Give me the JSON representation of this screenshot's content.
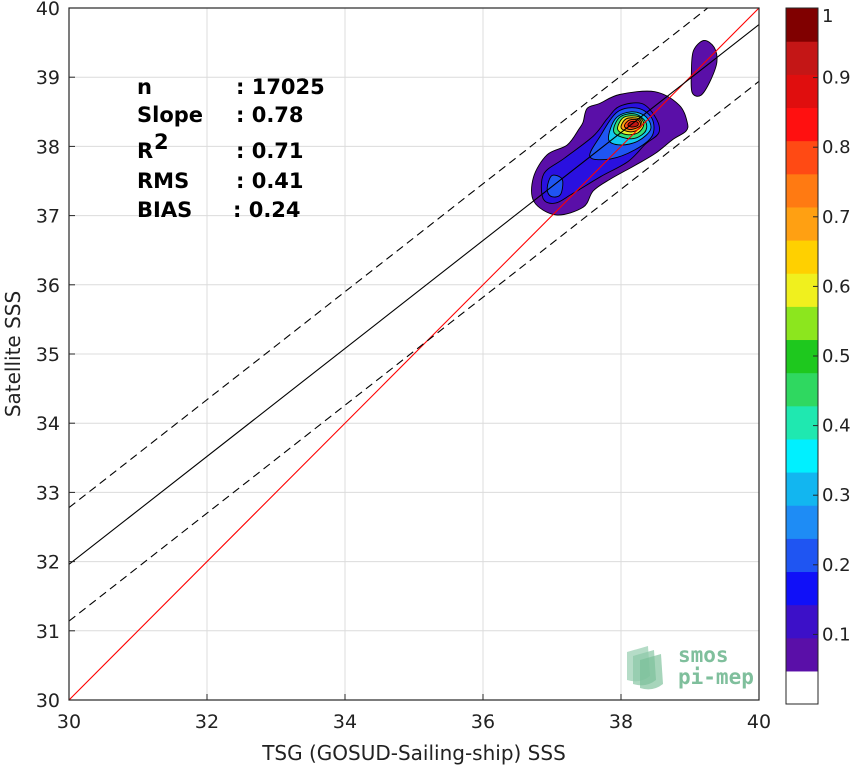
{
  "chart_data": {
    "type": "scatter",
    "subtype": "2d-density-contour",
    "xlabel": "TSG (GOSUD-Sailing-ship) SSS",
    "ylabel": "Satellite SSS",
    "xlim": [
      30,
      40
    ],
    "ylim": [
      30,
      40
    ],
    "x_ticks": [
      "30",
      "32",
      "34",
      "36",
      "38",
      "40"
    ],
    "y_ticks": [
      "30",
      "31",
      "32",
      "33",
      "34",
      "35",
      "36",
      "37",
      "38",
      "39",
      "40"
    ],
    "grid": true,
    "stats": [
      {
        "label": "n",
        "value": ": 17025"
      },
      {
        "label": "Slope",
        "value": ": 0.78"
      },
      {
        "label": "R",
        "sup": "2",
        "value": ": 0.71"
      },
      {
        "label": "RMS",
        "value": ": 0.41"
      },
      {
        "label": "BIAS",
        "value": ": 0.24"
      }
    ],
    "reference_lines": [
      {
        "name": "1:1",
        "color": "#ff0000",
        "style": "solid",
        "points": [
          [
            30,
            30
          ],
          [
            40,
            40
          ]
        ]
      },
      {
        "name": "regression",
        "color": "#000000",
        "style": "solid",
        "points": [
          [
            30,
            31.96
          ],
          [
            40,
            39.76
          ]
        ]
      },
      {
        "name": "upper",
        "color": "#000000",
        "style": "dashed",
        "points": [
          [
            30,
            32.78
          ],
          [
            40,
            40.58
          ]
        ]
      },
      {
        "name": "lower",
        "color": "#000000",
        "style": "dashed",
        "points": [
          [
            30,
            31.14
          ],
          [
            40,
            38.94
          ]
        ]
      }
    ],
    "density_contours": [
      {
        "level": 0.05,
        "color": "#5a0fa8",
        "points": [
          [
            36.74,
            37.2
          ],
          [
            36.73,
            37.55
          ],
          [
            36.93,
            37.88
          ],
          [
            37.22,
            38.02
          ],
          [
            37.39,
            38.25
          ],
          [
            37.45,
            38.35
          ],
          [
            37.51,
            38.55
          ],
          [
            37.69,
            38.62
          ],
          [
            37.98,
            38.75
          ],
          [
            38.49,
            38.79
          ],
          [
            38.84,
            38.6
          ],
          [
            38.96,
            38.35
          ],
          [
            38.94,
            38.22
          ],
          [
            38.75,
            38.1
          ],
          [
            38.5,
            37.9
          ],
          [
            38.21,
            37.73
          ],
          [
            37.85,
            37.53
          ],
          [
            37.6,
            37.36
          ],
          [
            37.45,
            37.12
          ],
          [
            37.06,
            37.01
          ]
        ]
      },
      {
        "level": 0.05,
        "color": "#5a0fa8",
        "points": [
          [
            39.02,
            39.08
          ],
          [
            39.05,
            39.38
          ],
          [
            39.2,
            39.53
          ],
          [
            39.35,
            39.43
          ],
          [
            39.39,
            39.22
          ],
          [
            39.3,
            38.96
          ],
          [
            39.16,
            38.74
          ],
          [
            39.03,
            38.78
          ]
        ]
      },
      {
        "level": 0.1,
        "color": "#2a10e0",
        "points": [
          [
            36.87,
            37.25
          ],
          [
            36.88,
            37.6
          ],
          [
            37.18,
            37.83
          ],
          [
            37.6,
            38.15
          ],
          [
            37.8,
            38.4
          ],
          [
            37.98,
            38.58
          ],
          [
            38.3,
            38.62
          ],
          [
            38.5,
            38.42
          ],
          [
            38.55,
            38.2
          ],
          [
            38.35,
            38.03
          ],
          [
            38.1,
            37.78
          ],
          [
            37.7,
            37.56
          ],
          [
            37.3,
            37.32
          ],
          [
            37.05,
            37.18
          ]
        ]
      },
      {
        "level": 0.2,
        "color": "#1f55f2",
        "points": [
          [
            37.55,
            37.85
          ],
          [
            37.7,
            38.15
          ],
          [
            37.95,
            38.5
          ],
          [
            38.25,
            38.55
          ],
          [
            38.45,
            38.4
          ],
          [
            38.45,
            38.15
          ],
          [
            38.2,
            37.95
          ],
          [
            37.85,
            37.82
          ]
        ]
      },
      {
        "level": 0.2,
        "color": "#1f55f2",
        "points": [
          [
            36.93,
            37.4
          ],
          [
            37.0,
            37.58
          ],
          [
            37.15,
            37.52
          ],
          [
            37.12,
            37.3
          ],
          [
            36.98,
            37.28
          ]
        ]
      },
      {
        "level": 0.35,
        "color": "#12c8f0",
        "points": [
          [
            37.82,
            38.1
          ],
          [
            37.92,
            38.4
          ],
          [
            38.15,
            38.5
          ],
          [
            38.36,
            38.43
          ],
          [
            38.43,
            38.25
          ],
          [
            38.25,
            38.08
          ],
          [
            38.0,
            38.02
          ]
        ]
      },
      {
        "level": 0.45,
        "color": "#2fe07a",
        "points": [
          [
            37.9,
            38.2
          ],
          [
            37.98,
            38.42
          ],
          [
            38.2,
            38.47
          ],
          [
            38.36,
            38.35
          ],
          [
            38.34,
            38.2
          ],
          [
            38.15,
            38.11
          ]
        ]
      },
      {
        "level": 0.6,
        "color": "#e6f02a",
        "points": [
          [
            37.95,
            38.25
          ],
          [
            38.04,
            38.42
          ],
          [
            38.25,
            38.43
          ],
          [
            38.33,
            38.32
          ],
          [
            38.25,
            38.2
          ],
          [
            38.08,
            38.17
          ]
        ]
      },
      {
        "level": 0.7,
        "color": "#ffa012",
        "points": [
          [
            38.0,
            38.28
          ],
          [
            38.08,
            38.4
          ],
          [
            38.26,
            38.4
          ],
          [
            38.3,
            38.3
          ],
          [
            38.2,
            38.22
          ],
          [
            38.08,
            38.22
          ]
        ]
      },
      {
        "level": 0.8,
        "color": "#ff4a14",
        "points": [
          [
            38.05,
            38.3
          ],
          [
            38.12,
            38.38
          ],
          [
            38.25,
            38.38
          ],
          [
            38.28,
            38.3
          ],
          [
            38.18,
            38.25
          ],
          [
            38.1,
            38.25
          ]
        ]
      },
      {
        "level": 0.95,
        "color": "#c41616",
        "points": [
          [
            38.1,
            38.31
          ],
          [
            38.15,
            38.36
          ],
          [
            38.24,
            38.35
          ],
          [
            38.24,
            38.3
          ],
          [
            38.15,
            38.28
          ]
        ]
      }
    ],
    "colorbar": {
      "range": [
        0,
        1
      ],
      "tick_labels": [
        "0.1",
        "0.2",
        "0.3",
        "0.4",
        "0.5",
        "0.6",
        "0.7",
        "0.8",
        "0.9",
        "1"
      ],
      "tick_values": [
        0.1,
        0.2,
        0.3,
        0.4,
        0.5,
        0.6,
        0.7,
        0.8,
        0.9,
        1.0
      ],
      "colors": [
        "#ffffff",
        "#5a0fa8",
        "#3c10c8",
        "#1010f8",
        "#1f55f2",
        "#1e8cf5",
        "#12b6f0",
        "#00f0ff",
        "#1fe8b0",
        "#2fd860",
        "#1ec81e",
        "#8ce61e",
        "#f0f01e",
        "#ffd000",
        "#ffa012",
        "#ff7a12",
        "#ff4a14",
        "#ff1010",
        "#e00e0e",
        "#c41616",
        "#800000"
      ]
    },
    "logo": {
      "line1": "smos",
      "line2": "pi-mep"
    }
  }
}
